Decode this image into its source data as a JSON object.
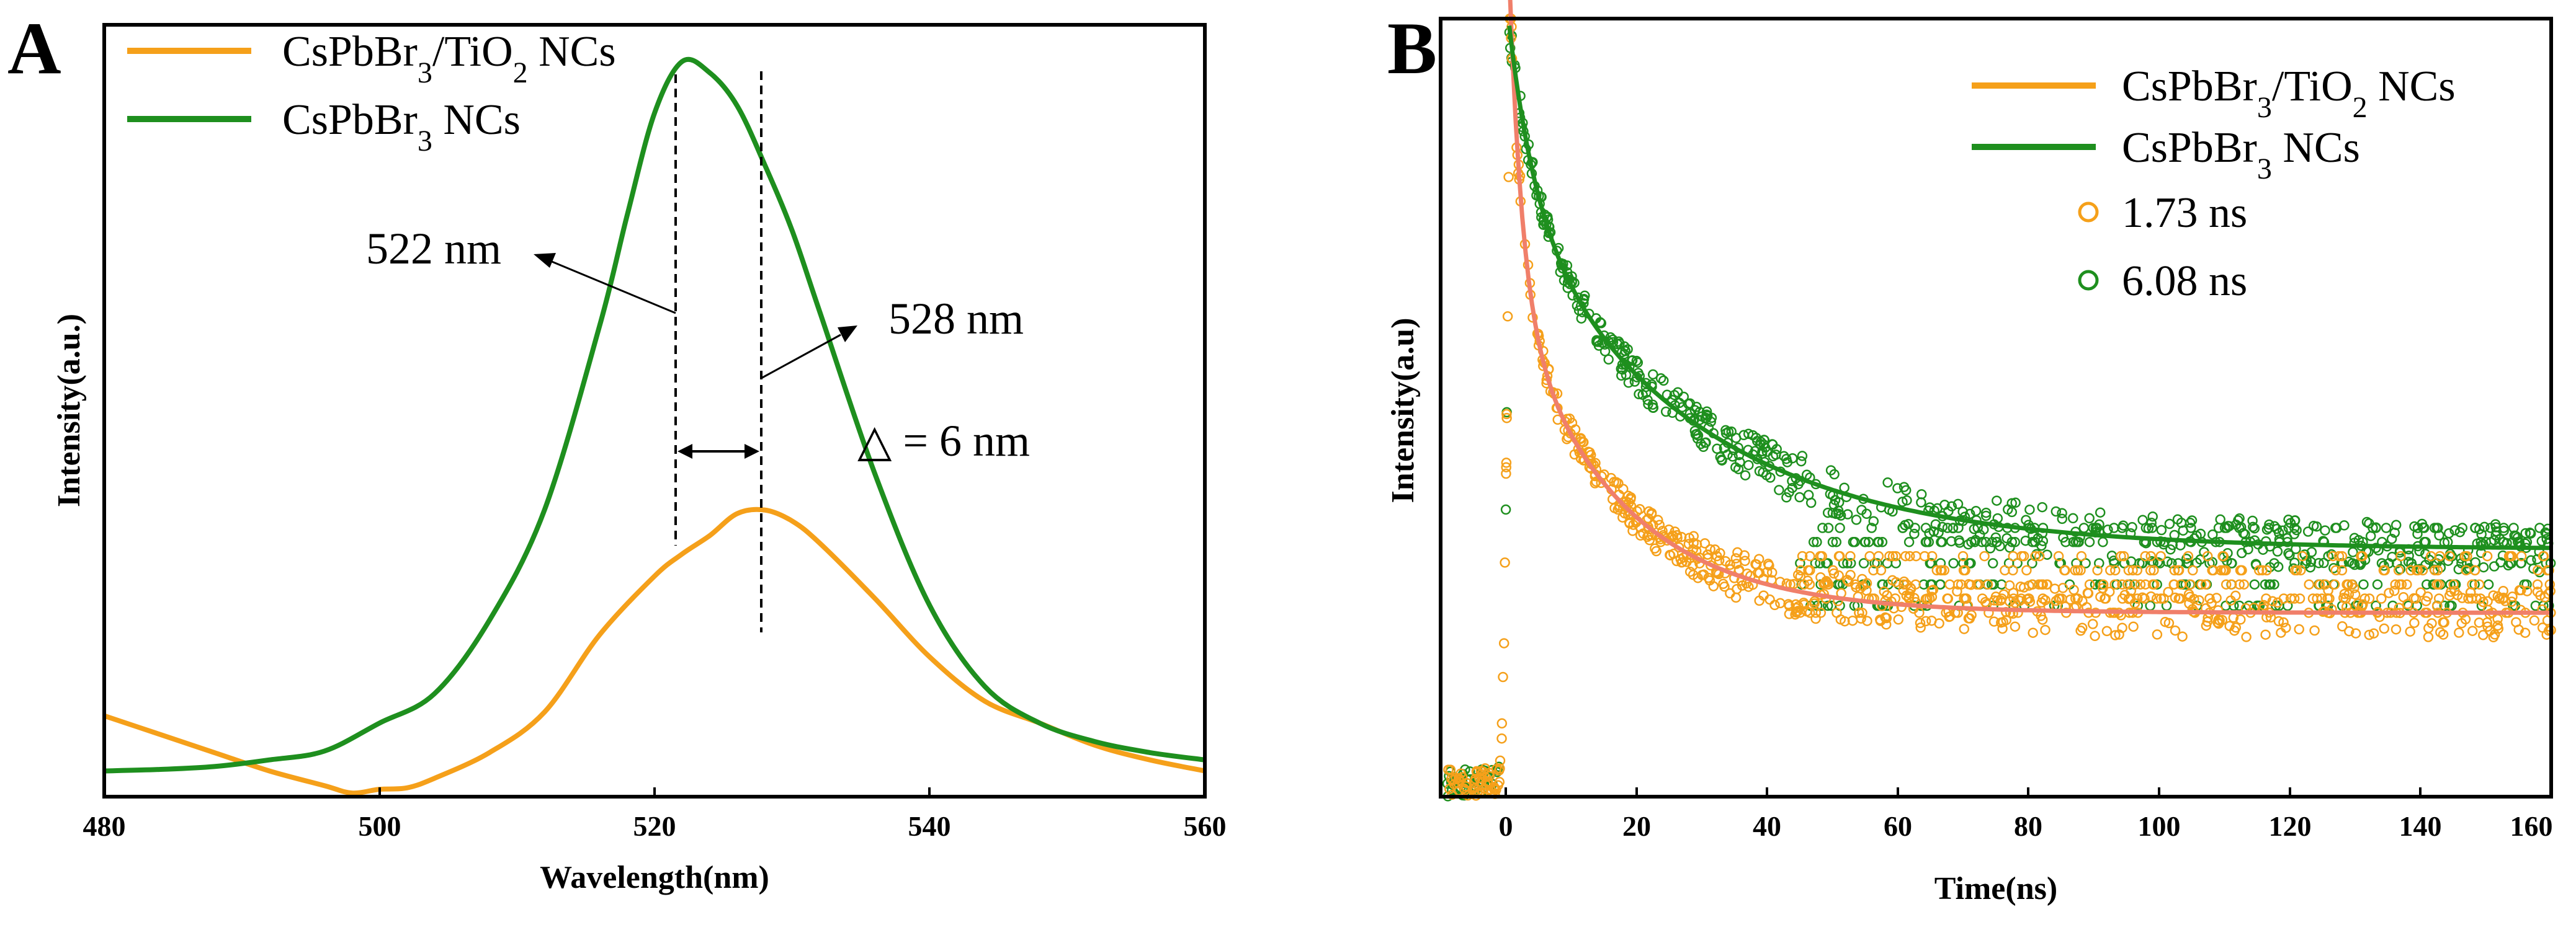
{
  "figure": {
    "panel_a": {
      "letter": "A",
      "xlabel": "Wavelength(nm)",
      "ylabel": "Intensity(a.u.)",
      "xticks": [
        "480",
        "500",
        "520",
        "540",
        "560"
      ],
      "legend": [
        {
          "label": "CsPbBr3/TiO2 NCs",
          "color": "#f5a01a"
        },
        {
          "label": "CsPbBr3 NCs",
          "color": "#1e8f1e"
        }
      ],
      "annotations": {
        "peak1": "522 nm",
        "peak2": "528 nm",
        "delta": "△ = 6 nm"
      }
    },
    "panel_b": {
      "letter": "B",
      "xlabel": "Time(ns)",
      "ylabel": "Intensity(a.u)",
      "xticks": [
        "0",
        "20",
        "40",
        "60",
        "80",
        "100",
        "120",
        "140",
        "160"
      ],
      "legend": [
        {
          "label": "CsPbBr3/TiO2 NCs",
          "color": "#f5a01a",
          "kind": "line"
        },
        {
          "label": "CsPbBr3 NCs",
          "color": "#1e8f1e",
          "kind": "line"
        },
        {
          "label": "1.73 ns",
          "color": "#f5a01a",
          "kind": "marker"
        },
        {
          "label": "6.08 ns",
          "color": "#1e8f1e",
          "kind": "marker"
        }
      ]
    }
  },
  "chart_data": [
    {
      "type": "line",
      "title": "",
      "xlabel": "Wavelength(nm)",
      "ylabel": "Intensity(a.u.)",
      "xlim": [
        480,
        560
      ],
      "ylim": [
        0,
        1.05
      ],
      "x_ticks": [
        480,
        500,
        520,
        540,
        560
      ],
      "legend_position": "top-left",
      "series": [
        {
          "name": "CsPbBr3/TiO2 NCs",
          "color": "#f5a01a",
          "x": [
            480,
            484,
            488,
            492,
            496,
            498,
            500,
            502,
            504,
            508,
            512,
            516,
            520,
            522,
            524,
            526,
            528,
            530,
            532,
            536,
            540,
            544,
            548,
            552,
            556,
            560
          ],
          "y": [
            0.11,
            0.085,
            0.06,
            0.035,
            0.015,
            0.005,
            0.01,
            0.012,
            0.025,
            0.06,
            0.115,
            0.22,
            0.3,
            0.33,
            0.355,
            0.385,
            0.39,
            0.375,
            0.345,
            0.27,
            0.19,
            0.13,
            0.1,
            0.07,
            0.05,
            0.035
          ]
        },
        {
          "name": "CsPbBr3 NCs",
          "color": "#1e8f1e",
          "x": [
            480,
            484,
            488,
            492,
            496,
            500,
            504,
            508,
            512,
            516,
            518,
            520,
            522,
            524,
            526,
            528,
            530,
            532,
            536,
            540,
            544,
            548,
            552,
            556,
            560
          ],
          "y": [
            0.035,
            0.037,
            0.041,
            0.05,
            0.062,
            0.1,
            0.14,
            0.24,
            0.39,
            0.64,
            0.79,
            0.93,
            1.0,
            0.985,
            0.94,
            0.86,
            0.77,
            0.66,
            0.44,
            0.26,
            0.15,
            0.1,
            0.075,
            0.06,
            0.05
          ]
        }
      ],
      "annotations": [
        {
          "text": "522 nm",
          "x": 522
        },
        {
          "text": "528 nm",
          "x": 528
        },
        {
          "text": "△ = 6 nm"
        }
      ]
    },
    {
      "type": "scatter",
      "title": "",
      "xlabel": "Time(ns)",
      "ylabel": "Intensity(a.u)",
      "xlim": [
        -10,
        160
      ],
      "ylim": [
        0,
        1.1
      ],
      "x_ticks": [
        0,
        20,
        40,
        60,
        80,
        100,
        120,
        140,
        160
      ],
      "legend_position": "top-right",
      "series": [
        {
          "name": "CsPbBr3/TiO2 NCs",
          "kind": "fit",
          "color": "#f5a01a",
          "lifetime_ns": 1.73,
          "peak_t": 0.5,
          "A1": 0.46,
          "tau1": 2.0,
          "A2": 0.44,
          "tau2": 16.5,
          "baseline": 0.26
        },
        {
          "name": "CsPbBr3 NCs",
          "kind": "fit",
          "color": "#1e8f1e",
          "lifetime_ns": 6.08,
          "peak_t": 0.5,
          "A1": 0.25,
          "tau1": 4.0,
          "A2": 0.49,
          "tau2": 28.0,
          "baseline": 0.35
        },
        {
          "name": "1.73 ns",
          "kind": "data",
          "color": "#f5a01a"
        },
        {
          "name": "6.08 ns",
          "kind": "data",
          "color": "#1e8f1e"
        }
      ]
    }
  ]
}
